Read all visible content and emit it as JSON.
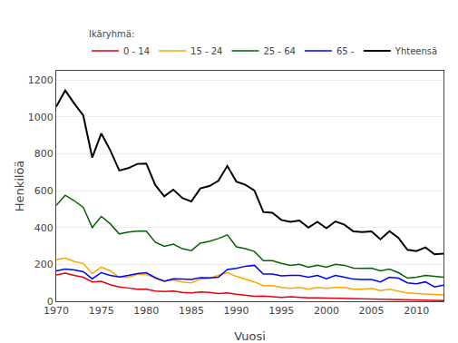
{
  "chart_data": {
    "type": "line",
    "x": [
      1970,
      1971,
      1972,
      1973,
      1974,
      1975,
      1976,
      1977,
      1978,
      1979,
      1980,
      1981,
      1982,
      1983,
      1984,
      1985,
      1986,
      1987,
      1988,
      1989,
      1990,
      1991,
      1992,
      1993,
      1994,
      1995,
      1996,
      1997,
      1998,
      1999,
      2000,
      2001,
      2002,
      2003,
      2004,
      2005,
      2006,
      2007,
      2008,
      2009,
      2010,
      2011,
      2012,
      2013
    ],
    "series": [
      {
        "name": "0 - 14",
        "color": "#e8000d",
        "values": [
          143,
          152,
          140,
          130,
          105,
          108,
          90,
          78,
          72,
          65,
          65,
          55,
          53,
          55,
          48,
          45,
          50,
          48,
          42,
          45,
          38,
          33,
          27,
          28,
          25,
          21,
          24,
          20,
          18,
          18,
          17,
          15,
          15,
          13,
          12,
          10,
          9,
          10,
          8,
          7,
          6,
          5,
          5,
          4
        ]
      },
      {
        "name": "15 - 24",
        "color": "#ffa500",
        "values": [
          225,
          235,
          215,
          205,
          150,
          185,
          165,
          130,
          130,
          145,
          145,
          125,
          110,
          115,
          105,
          100,
          120,
          125,
          140,
          155,
          135,
          120,
          105,
          85,
          85,
          75,
          70,
          75,
          65,
          75,
          70,
          75,
          75,
          65,
          65,
          70,
          58,
          65,
          55,
          45,
          42,
          40,
          38,
          35
        ]
      },
      {
        "name": "25 - 64",
        "color": "#006400",
        "values": [
          520,
          575,
          545,
          510,
          400,
          460,
          420,
          365,
          375,
          380,
          380,
          320,
          298,
          310,
          285,
          275,
          315,
          325,
          340,
          360,
          295,
          285,
          270,
          220,
          220,
          205,
          195,
          200,
          185,
          195,
          185,
          200,
          195,
          180,
          178,
          180,
          165,
          175,
          155,
          125,
          130,
          140,
          135,
          130
        ]
      },
      {
        "name": "65 -",
        "color": "#0000ff",
        "values": [
          165,
          175,
          170,
          160,
          122,
          155,
          140,
          132,
          140,
          150,
          155,
          128,
          108,
          122,
          120,
          118,
          128,
          127,
          130,
          172,
          178,
          190,
          195,
          148,
          148,
          138,
          140,
          140,
          130,
          140,
          122,
          140,
          130,
          120,
          118,
          118,
          105,
          130,
          125,
          100,
          95,
          105,
          78,
          88
        ]
      },
      {
        "name": "Yhteensä",
        "color": "#000000",
        "values": [
          1055,
          1143,
          1072,
          1008,
          779,
          910,
          819,
          709,
          722,
          745,
          747,
          630,
          569,
          605,
          560,
          541,
          612,
          625,
          653,
          734,
          649,
          632,
          601,
          484,
          480,
          441,
          431,
          438,
          400,
          431,
          396,
          433,
          415,
          379,
          375,
          379,
          336,
          380,
          344,
          279,
          272,
          292,
          255,
          258
        ]
      }
    ],
    "xlabel": "Vuosi",
    "ylabel": "Henkilöä",
    "legend_title": "Ikäryhmä:",
    "legend": "upper right",
    "grid": true,
    "xlim": [
      1970,
      2013
    ],
    "xticks": [
      1970,
      1975,
      1980,
      1985,
      1990,
      1995,
      2000,
      2005,
      2010
    ],
    "ylim": [
      0,
      1250
    ],
    "yticks": [
      0,
      200,
      400,
      600,
      800,
      1000,
      1200
    ]
  }
}
